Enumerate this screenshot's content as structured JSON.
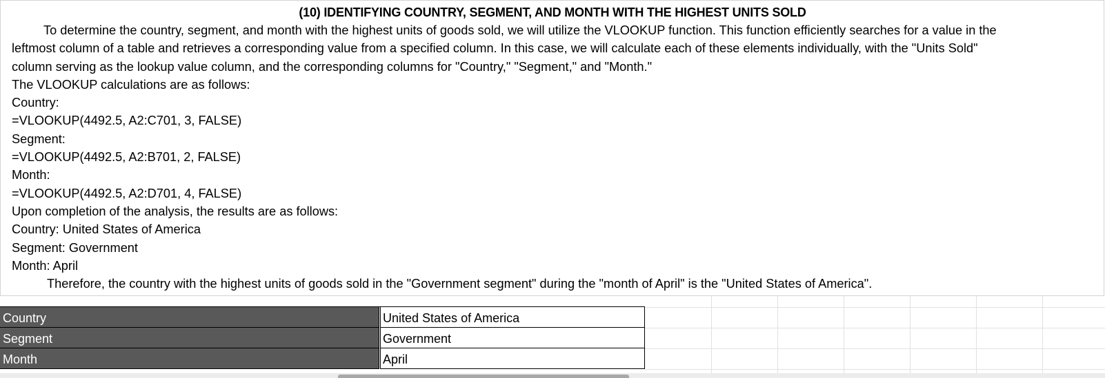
{
  "textbox": {
    "title": "(10) IDENTIFYING COUNTRY, SEGMENT, AND MONTH WITH THE HIGHEST UNITS SOLD",
    "paragraph_lines": [
      "To determine the country, segment, and month with the highest units of goods sold, we will utilize the VLOOKUP function. This function efficiently searches for a value in the",
      "leftmost column of a table and retrieves a corresponding value from a specified column. In this case, we will calculate each of these elements individually, with the \"Units Sold\"",
      "column serving as the lookup value column, and the corresponding columns for \"Country,\" \"Segment,\" and \"Month.\""
    ],
    "calc_intro": "The VLOOKUP calculations are as follows:",
    "country_heading": "Country:",
    "country_formula": "=VLOOKUP(4492.5, A2:C701, 3, FALSE)",
    "segment_heading": "Segment:",
    "segment_formula": "=VLOOKUP(4492.5, A2:B701, 2, FALSE)",
    "month_heading": "Month:",
    "month_formula": "=VLOOKUP(4492.5, A2:D701, 4, FALSE)",
    "results_intro": "Upon completion of the analysis, the results are as follows:",
    "result_country": "Country: United States of America",
    "result_segment": "Segment: Government",
    "result_month": "Month: April",
    "conclusion": "Therefore, the country with the highest units of goods sold in the \"Government segment\" during the \"month of April\" is the \"United States of America\"."
  },
  "summary_table": {
    "rows": [
      {
        "label": "Country",
        "value": "United States of America"
      },
      {
        "label": "Segment",
        "value": "Government"
      },
      {
        "label": "Month",
        "value": "April"
      }
    ]
  },
  "colors": {
    "label_fill": "#595959",
    "label_text": "#ffffff",
    "gridline": "#e1e1e1",
    "cell_border": "#000000"
  }
}
